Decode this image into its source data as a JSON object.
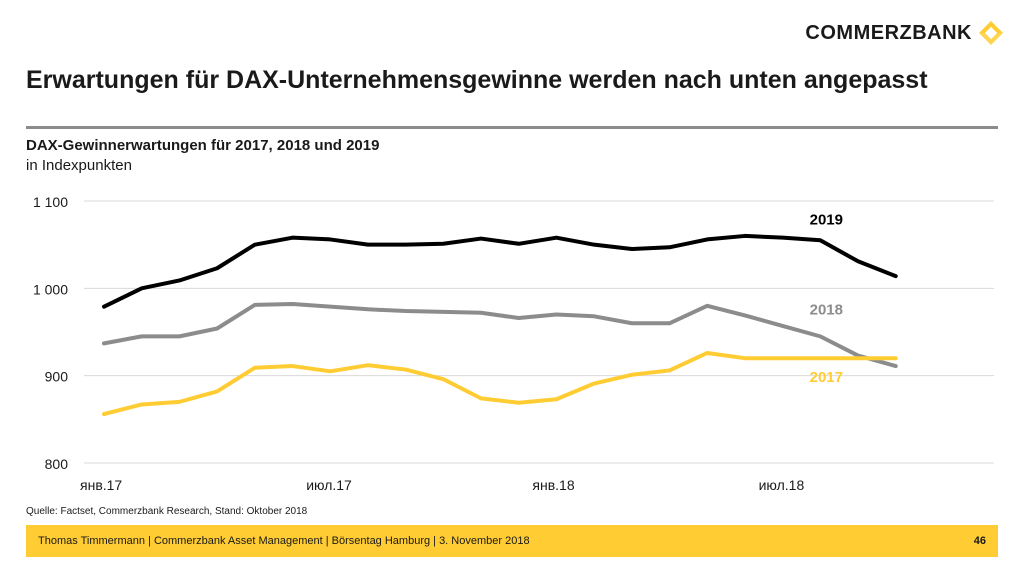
{
  "header": {
    "logo_text": "COMMERZBANK",
    "brand_color": "#ffcc33",
    "title": "Erwartungen für DAX-Unternehmensgewinne werden nach unten angepasst"
  },
  "chart_data": {
    "type": "line",
    "title": "DAX-Gewinnerwartungen für 2017, 2018 und 2019",
    "subtitle": "in Indexpunkten",
    "xlabel": "",
    "ylabel": "",
    "ylim": [
      800,
      1100
    ],
    "yticks": [
      800,
      900,
      1000,
      1100
    ],
    "ytick_labels": [
      "800",
      "900",
      "1 000",
      "1 100"
    ],
    "xtick_labels": [
      "янв.17",
      "июл.17",
      "янв.18",
      "июл.18"
    ],
    "xtick_positions": [
      0,
      6,
      12,
      18
    ],
    "x": [
      0,
      1,
      2,
      3,
      4,
      5,
      6,
      7,
      8,
      9,
      10,
      11,
      12,
      13,
      14,
      15,
      16,
      17,
      18,
      19,
      20,
      21
    ],
    "grid": true,
    "series": [
      {
        "name": "2019",
        "color": "#000000",
        "label_color": "#000000",
        "values": [
          979,
          1000,
          1009,
          1023,
          1050,
          1058,
          1056,
          1050,
          1050,
          1051,
          1057,
          1051,
          1058,
          1050,
          1045,
          1047,
          1056,
          1060,
          1058,
          1055,
          1031,
          1014
        ]
      },
      {
        "name": "2018",
        "color": "#8c8c8c",
        "label_color": "#8c8c8c",
        "values": [
          937,
          945,
          945,
          954,
          981,
          982,
          979,
          976,
          974,
          973,
          972,
          966,
          970,
          968,
          960,
          960,
          980,
          969,
          957,
          945,
          923,
          911
        ]
      },
      {
        "name": "2017",
        "color": "#ffcc33",
        "label_color": "#ffcc33",
        "values": [
          856,
          867,
          870,
          882,
          909,
          911,
          905,
          912,
          907,
          896,
          874,
          869,
          873,
          891,
          901,
          906,
          926,
          920,
          920,
          920,
          920,
          920
        ]
      }
    ]
  },
  "source": "Quelle: Factset, Commerzbank Research, Stand: Oktober 2018",
  "footer": {
    "text": "Thomas Timmermann | Commerzbank Asset Management | Börsentag Hamburg | 3. November 2018",
    "page": "46"
  }
}
